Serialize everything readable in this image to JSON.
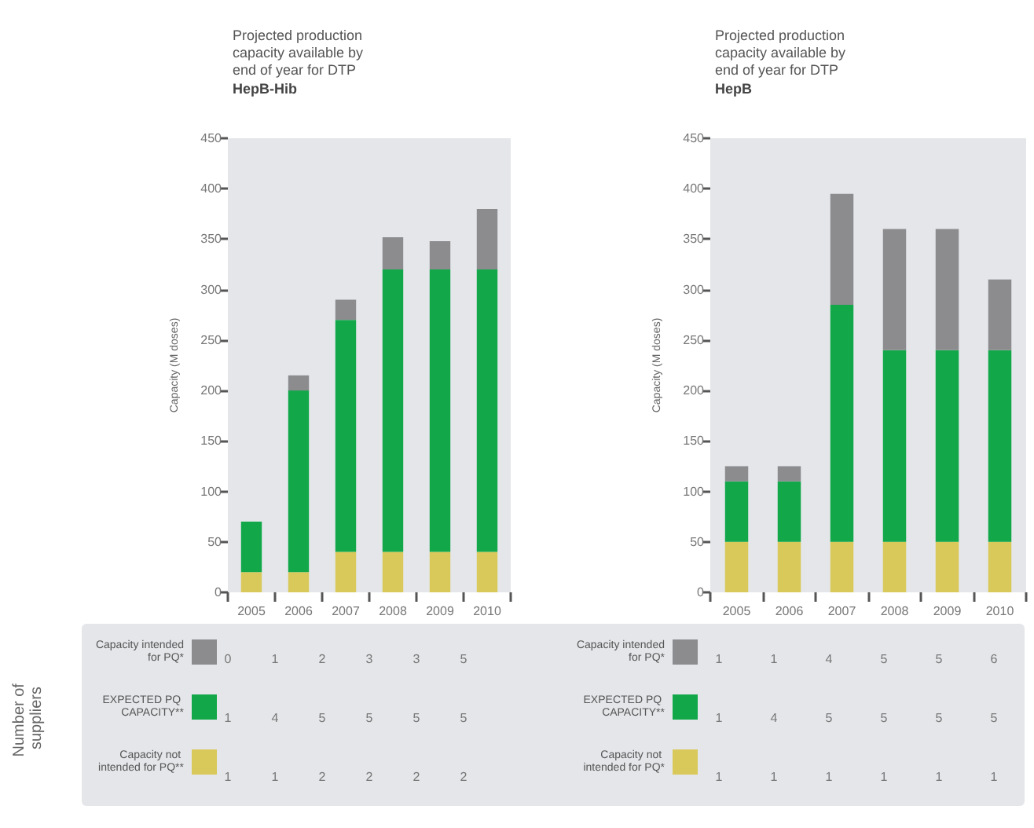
{
  "chart_data": [
    {
      "type": "bar",
      "title": "Projected production capacity available by end of year for DTP",
      "subtitle": "HepB-Hib",
      "ylabel": "Capacity (M doses)",
      "categories": [
        "2005",
        "2006",
        "2007",
        "2008",
        "2009",
        "2010"
      ],
      "stacked": true,
      "ylim": [
        0,
        450
      ],
      "yticks": [
        0,
        50,
        100,
        150,
        200,
        250,
        300,
        350,
        400,
        450
      ],
      "grid": false,
      "legend": "bottom left",
      "series": [
        {
          "name": "Capacity not intended for PQ**",
          "color": "#d9c95a",
          "values": [
            20,
            20,
            40,
            40,
            40,
            40
          ]
        },
        {
          "name": "EXPECTED PQ CAPACITY**",
          "color": "#12a84a",
          "values": [
            50,
            180,
            230,
            280,
            280,
            280
          ]
        },
        {
          "name": "Capacity intended for PQ*",
          "color": "#8c8c8f",
          "values": [
            0,
            15,
            20,
            32,
            28,
            60
          ]
        }
      ]
    },
    {
      "type": "bar",
      "title": "Projected production capacity available by end of year for DTP",
      "subtitle": "HepB",
      "ylabel": "Capacity (M doses)",
      "categories": [
        "2005",
        "2006",
        "2007",
        "2008",
        "2009",
        "2010"
      ],
      "stacked": true,
      "ylim": [
        0,
        450
      ],
      "yticks": [
        0,
        50,
        100,
        150,
        200,
        250,
        300,
        350,
        400,
        450
      ],
      "grid": false,
      "legend": "bottom left",
      "series": [
        {
          "name": "Capacity not intended for PQ*",
          "color": "#d9c95a",
          "values": [
            50,
            50,
            50,
            50,
            50,
            50
          ]
        },
        {
          "name": "EXPECTED PQ CAPACITY**",
          "color": "#12a84a",
          "values": [
            60,
            60,
            235,
            190,
            190,
            190
          ]
        },
        {
          "name": "Capacity intended for PQ*",
          "color": "#8c8c8f",
          "values": [
            15,
            15,
            110,
            120,
            120,
            70
          ]
        }
      ]
    },
    {
      "type": "other",
      "ylabel": "Number of suppliers",
      "annotations": [
        "0",
        "1",
        "2",
        "3",
        "3",
        "5",
        "1",
        "4",
        "5",
        "5",
        "5",
        "5",
        "1",
        "1",
        "2",
        "2",
        "2",
        "2"
      ]
    },
    {
      "type": "other",
      "annotations": [
        "1",
        "1",
        "4",
        "5",
        "5",
        "6",
        "1",
        "4",
        "5",
        "5",
        "5",
        "5",
        "1",
        "1",
        "1",
        "1",
        "1",
        "1"
      ]
    }
  ]
}
